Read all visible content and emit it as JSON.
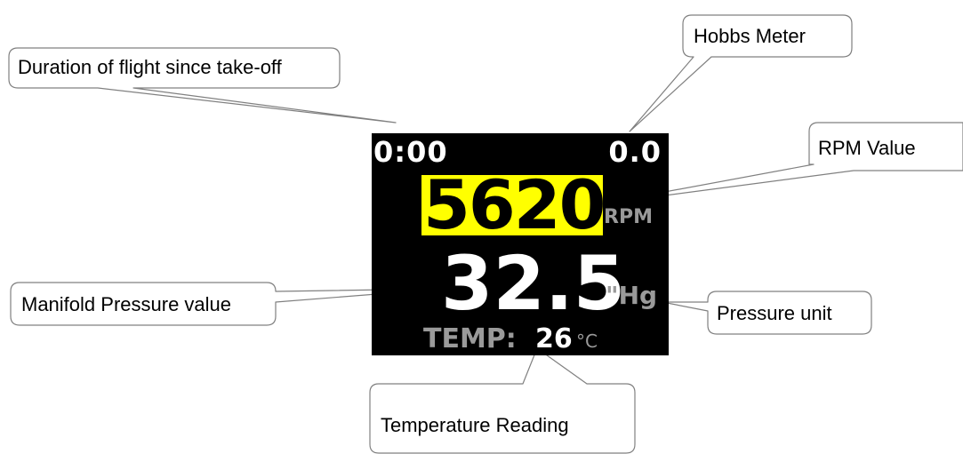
{
  "display": {
    "flight_time": "0:00",
    "hobbs": "0.0",
    "rpm_value": "5620",
    "rpm_unit": "RPM",
    "mp_value": "32.5",
    "mp_unit": "\"Hg",
    "temp_label": "TEMP:",
    "temp_value": "26",
    "temp_unit": "°C",
    "colors": {
      "background": "#000000",
      "rpm_highlight": "#ffff00",
      "unit_gray": "#9a9a9a",
      "value_white": "#ffffff"
    }
  },
  "callouts": {
    "duration": "Duration of flight since take-off",
    "hobbs": "Hobbs Meter",
    "rpm": "RPM Value",
    "manifold": "Manifold Pressure value",
    "pressure_unit": "Pressure unit",
    "temperature": "Temperature Reading"
  }
}
